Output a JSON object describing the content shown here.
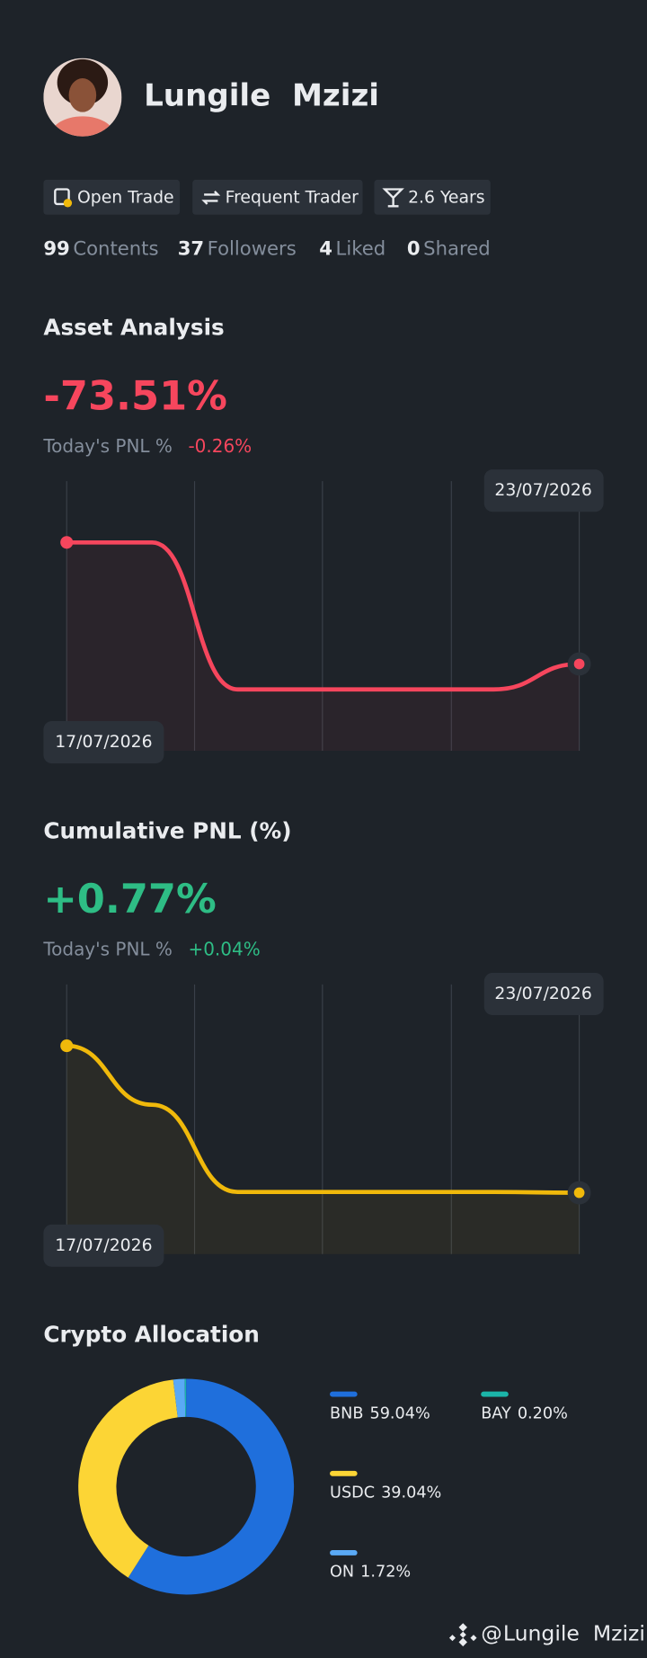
{
  "profile": {
    "name": "Lungile  Mzizi",
    "badges": [
      "Open Trade",
      "Frequent Trader",
      "2.6 Years"
    ],
    "stats": [
      {
        "value": 99,
        "label": "Contents"
      },
      {
        "value": 37,
        "label": "Followers"
      },
      {
        "value": 4,
        "label": "Liked"
      },
      {
        "value": 0,
        "label": "Shared"
      }
    ]
  },
  "chart_data": [
    {
      "type": "line",
      "title": "Asset Analysis",
      "headline": "-73.51%",
      "today_label": "Today's PNL %",
      "today_value": "-0.26%",
      "categories": [
        "17/07/2026",
        null,
        null,
        null,
        null,
        null,
        "23/07/2026"
      ],
      "series": [
        {
          "color": "#f6465d",
          "values": [
            0,
            0,
            -88.9,
            -88.9,
            -88.9,
            -88.9,
            -73.51
          ]
        }
      ]
    },
    {
      "type": "line",
      "title": "Cumulative PNL (%)",
      "headline": "+0.77%",
      "today_label": "Today's PNL %",
      "today_value": "+0.04%",
      "categories": [
        "17/07/2026",
        null,
        null,
        null,
        null,
        null,
        "23/07/2026"
      ],
      "series": [
        {
          "color": "#f0b90b",
          "values": [
            6.5,
            4.2,
            0.8,
            0.8,
            0.8,
            0.8,
            0.77
          ]
        }
      ]
    },
    {
      "type": "pie",
      "title": "Crypto Allocation",
      "categories": [
        "BNB",
        "USDC",
        "ON",
        "BAY"
      ],
      "values": [
        59.04,
        39.04,
        1.72,
        0.2
      ],
      "value_labels": [
        "59.04%",
        "39.04%",
        "1.72%",
        "0.20%"
      ],
      "colors": [
        "#1f6fdc",
        "#fcd535",
        "#5aa9f5",
        "#1bb5a9"
      ]
    }
  ],
  "footer": {
    "prefix": "@"
  }
}
